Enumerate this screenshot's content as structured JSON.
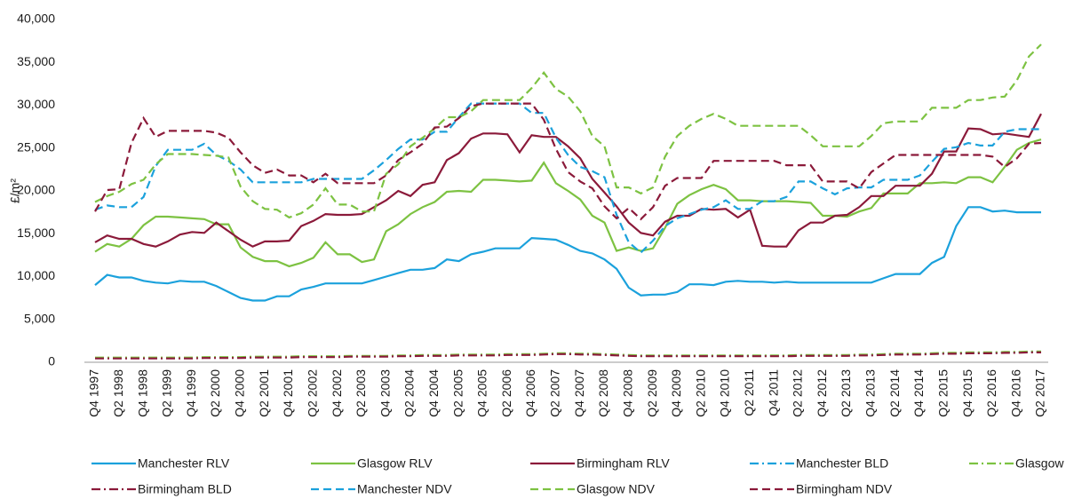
{
  "chart_data": {
    "type": "line",
    "y_label": "£/m²",
    "categories": [
      "Q4 1997",
      null,
      "Q2 1998",
      null,
      "Q4 1998",
      null,
      "Q2 1999",
      null,
      "Q4 1999",
      null,
      "Q2 2000",
      null,
      "Q4 2000",
      null,
      "Q2 2001",
      null,
      "Q4 2001",
      null,
      "Q2 2002",
      null,
      "Q4 2002",
      null,
      "Q2 2003",
      null,
      "Q4 2003",
      null,
      "Q2 2004",
      null,
      "Q4 2004",
      null,
      "Q2 2005",
      null,
      "Q4 2005",
      null,
      "Q2 2006",
      null,
      "Q4 2006",
      null,
      "Q2 2007",
      null,
      "Q4 2007",
      null,
      "Q2 2008",
      null,
      "Q4 2008",
      null,
      "Q2 2009",
      null,
      "Q4 2009",
      null,
      "Q2 2010",
      null,
      "Q4 2010",
      null,
      "Q2 2011",
      null,
      "Q4 2011",
      null,
      "Q2 2012",
      null,
      "Q4 2012",
      null,
      "Q2 2013",
      null,
      "Q4 2013",
      null,
      "Q2 2014",
      null,
      "Q4 2014",
      null,
      "Q2 2015",
      null,
      "Q4 2015",
      null,
      "Q2 2016",
      null,
      "Q4 2016",
      null,
      "Q2 2017"
    ],
    "ylim": [
      0,
      40000
    ],
    "yticks": [
      0,
      {
        "value": 5000,
        "label": "5,000"
      },
      {
        "value": 10000,
        "label": "10,000"
      },
      {
        "value": 15000,
        "label": "15,000"
      },
      {
        "value": 20000,
        "label": "20,000"
      },
      {
        "value": 25000,
        "label": "25,000"
      },
      {
        "value": 30000,
        "label": "30,000"
      },
      {
        "value": 35000,
        "label": "35,000"
      },
      {
        "value": 40000,
        "label": "40,000"
      }
    ],
    "grid": false,
    "series": [
      {
        "name": "Manchester RLV",
        "color": "#1ba1dc",
        "dash": "solid",
        "values": [
          9000,
          10200,
          9900,
          9900,
          9500,
          9300,
          9200,
          9500,
          9400,
          9400,
          8900,
          8200,
          7500,
          7200,
          7200,
          7700,
          7700,
          8500,
          8800,
          9200,
          9200,
          9200,
          9200,
          9600,
          10000,
          10400,
          10800,
          10800,
          11000,
          12000,
          11800,
          12600,
          12900,
          13300,
          13300,
          13300,
          14500,
          14400,
          14300,
          13700,
          13000,
          12700,
          12000,
          10900,
          8700,
          7800,
          7900,
          7900,
          8200,
          9100,
          9100,
          9000,
          9400,
          9500,
          9400,
          9400,
          9300,
          9400,
          9300,
          9300,
          9300,
          9300,
          9300,
          9300,
          9300,
          9800,
          10300,
          10300,
          10300,
          11600,
          12300,
          15900,
          18100,
          18100,
          17600,
          17700,
          17500,
          17500,
          17500
        ]
      },
      {
        "name": "Glasgow RLV",
        "color": "#7dc242",
        "dash": "solid",
        "values": [
          12900,
          13800,
          13500,
          14400,
          16000,
          17000,
          17000,
          16900,
          16800,
          16700,
          16100,
          16100,
          13400,
          12300,
          11800,
          11800,
          11200,
          11600,
          12200,
          14000,
          12600,
          12600,
          11700,
          12000,
          15300,
          16100,
          17300,
          18100,
          18700,
          19900,
          20000,
          19900,
          21300,
          21300,
          21200,
          21100,
          21200,
          23300,
          20900,
          20000,
          19000,
          17100,
          16300,
          13000,
          13400,
          13000,
          13300,
          15700,
          18500,
          19500,
          20200,
          20700,
          20200,
          18900,
          18900,
          18800,
          18800,
          18800,
          18700,
          18600,
          17100,
          17100,
          17000,
          17600,
          18000,
          19700,
          19700,
          19700,
          20900,
          20900,
          21000,
          20900,
          21600,
          21600,
          21000,
          22800,
          24800,
          25600,
          26000
        ]
      },
      {
        "name": "Birmingham RLV",
        "color": "#8b1a3a",
        "dash": "solid",
        "values": [
          14000,
          14800,
          14400,
          14400,
          13800,
          13500,
          14100,
          14900,
          15200,
          15100,
          16300,
          15300,
          14300,
          13500,
          14100,
          14100,
          14200,
          15900,
          16500,
          17300,
          17200,
          17200,
          17300,
          18100,
          18900,
          20000,
          19400,
          20700,
          21000,
          23600,
          24400,
          26100,
          26700,
          26700,
          26600,
          24500,
          26500,
          26300,
          26300,
          25200,
          23800,
          21400,
          19800,
          18200,
          16300,
          15100,
          14800,
          16400,
          17100,
          17100,
          17900,
          17800,
          17900,
          16900,
          17800,
          13600,
          13500,
          13500,
          15400,
          16300,
          16300,
          17100,
          17200,
          18100,
          19400,
          19400,
          20600,
          20600,
          20600,
          22000,
          24600,
          24600,
          27300,
          27200,
          26600,
          26700,
          26500,
          26300,
          29000
        ]
      },
      {
        "name": "Manchester BLD",
        "color": "#1ba1dc",
        "dash": "dashdot",
        "values": [
          500,
          500,
          500,
          500,
          500,
          500,
          500,
          500,
          500,
          550,
          550,
          550,
          550,
          600,
          600,
          600,
          600,
          650,
          650,
          650,
          650,
          700,
          700,
          700,
          700,
          750,
          750,
          800,
          800,
          800,
          850,
          850,
          850,
          850,
          900,
          900,
          900,
          950,
          1000,
          1000,
          950,
          950,
          900,
          850,
          800,
          750,
          750,
          750,
          750,
          750,
          750,
          750,
          750,
          750,
          750,
          750,
          750,
          750,
          800,
          800,
          800,
          800,
          800,
          850,
          850,
          900,
          950,
          950,
          950,
          1000,
          1050,
          1050,
          1100,
          1100,
          1100,
          1150,
          1150,
          1200,
          1200
        ]
      },
      {
        "name": "Glasgow BLD",
        "color": "#7dc242",
        "dash": "dashdot",
        "values": [
          550,
          550,
          550,
          550,
          550,
          550,
          550,
          550,
          550,
          600,
          600,
          600,
          600,
          650,
          650,
          650,
          650,
          700,
          700,
          700,
          700,
          750,
          750,
          750,
          750,
          800,
          800,
          850,
          850,
          850,
          900,
          900,
          900,
          900,
          950,
          950,
          950,
          1000,
          1050,
          1050,
          1000,
          1000,
          950,
          900,
          850,
          800,
          800,
          800,
          800,
          800,
          800,
          800,
          800,
          800,
          800,
          800,
          800,
          800,
          850,
          850,
          850,
          850,
          850,
          900,
          900,
          950,
          1000,
          1000,
          1000,
          1050,
          1100,
          1100,
          1150,
          1150,
          1150,
          1200,
          1200,
          1250,
          1250
        ]
      },
      {
        "name": "Birmingham BLD",
        "color": "#8b1a3a",
        "dash": "dashdot",
        "values": [
          450,
          450,
          450,
          450,
          450,
          450,
          450,
          450,
          450,
          500,
          500,
          500,
          500,
          550,
          550,
          550,
          550,
          600,
          600,
          600,
          600,
          650,
          650,
          650,
          650,
          700,
          700,
          750,
          750,
          750,
          800,
          800,
          800,
          800,
          850,
          850,
          850,
          900,
          950,
          950,
          900,
          900,
          850,
          800,
          750,
          700,
          700,
          700,
          700,
          700,
          700,
          700,
          700,
          700,
          700,
          700,
          700,
          700,
          750,
          750,
          750,
          750,
          750,
          800,
          800,
          850,
          900,
          900,
          900,
          950,
          1000,
          1000,
          1050,
          1050,
          1050,
          1100,
          1100,
          1150,
          1150
        ]
      },
      {
        "name": "Manchester NDV",
        "color": "#1ba1dc",
        "dash": "dashed",
        "values": [
          17800,
          18300,
          18100,
          18100,
          19300,
          22900,
          24800,
          24800,
          24800,
          25500,
          24200,
          23500,
          22500,
          21000,
          21000,
          21000,
          21000,
          21000,
          21400,
          21400,
          21400,
          21400,
          21400,
          22400,
          23600,
          24900,
          26000,
          26000,
          26900,
          26900,
          28600,
          30200,
          30200,
          30200,
          30200,
          30200,
          29100,
          29100,
          26200,
          24200,
          22800,
          22300,
          21600,
          17200,
          14000,
          12800,
          14200,
          15900,
          16800,
          17300,
          17800,
          18100,
          18900,
          17900,
          17900,
          18800,
          18800,
          19300,
          21100,
          21100,
          20300,
          19600,
          20300,
          20400,
          20400,
          21300,
          21300,
          21300,
          21800,
          23400,
          24900,
          25100,
          25600,
          25300,
          25300,
          26900,
          27200,
          27200,
          27200
        ]
      },
      {
        "name": "Glasgow NDV",
        "color": "#7dc242",
        "dash": "dashed",
        "values": [
          18700,
          19400,
          19900,
          20800,
          21300,
          23100,
          24300,
          24300,
          24300,
          24200,
          24100,
          23900,
          20500,
          18800,
          17900,
          17800,
          16900,
          17400,
          18400,
          20300,
          18400,
          18400,
          17600,
          17600,
          22000,
          23100,
          25200,
          26200,
          27300,
          28600,
          28600,
          29300,
          30600,
          30600,
          30600,
          30600,
          32000,
          33800,
          31900,
          31000,
          29300,
          26400,
          25200,
          20400,
          20400,
          19700,
          20400,
          24000,
          26400,
          27600,
          28400,
          29000,
          28400,
          27600,
          27600,
          27600,
          27600,
          27600,
          27600,
          26500,
          25200,
          25200,
          25200,
          25200,
          26400,
          27900,
          28100,
          28100,
          28100,
          29700,
          29700,
          29700,
          30600,
          30600,
          30900,
          31000,
          32900,
          35700,
          37100
        ]
      },
      {
        "name": "Birmingham NDV",
        "color": "#8b1a3a",
        "dash": "dashed",
        "values": [
          17600,
          20100,
          20200,
          25600,
          28500,
          26300,
          27000,
          27000,
          27000,
          27000,
          26800,
          26200,
          24500,
          23000,
          22100,
          22500,
          21800,
          21800,
          21000,
          22000,
          20900,
          20900,
          20900,
          20900,
          21800,
          23600,
          24500,
          25500,
          27400,
          27500,
          28500,
          29900,
          30200,
          30200,
          30200,
          30200,
          30200,
          28300,
          24900,
          22200,
          21100,
          20300,
          18200,
          16800,
          18000,
          16700,
          18100,
          20600,
          21500,
          21500,
          21500,
          23500,
          23500,
          23500,
          23500,
          23500,
          23500,
          23000,
          23000,
          23000,
          21100,
          21100,
          21100,
          20300,
          22200,
          23200,
          24200,
          24200,
          24200,
          24200,
          24200,
          24200,
          24200,
          24200,
          24000,
          22800,
          23800,
          25500,
          25600
        ]
      }
    ]
  }
}
